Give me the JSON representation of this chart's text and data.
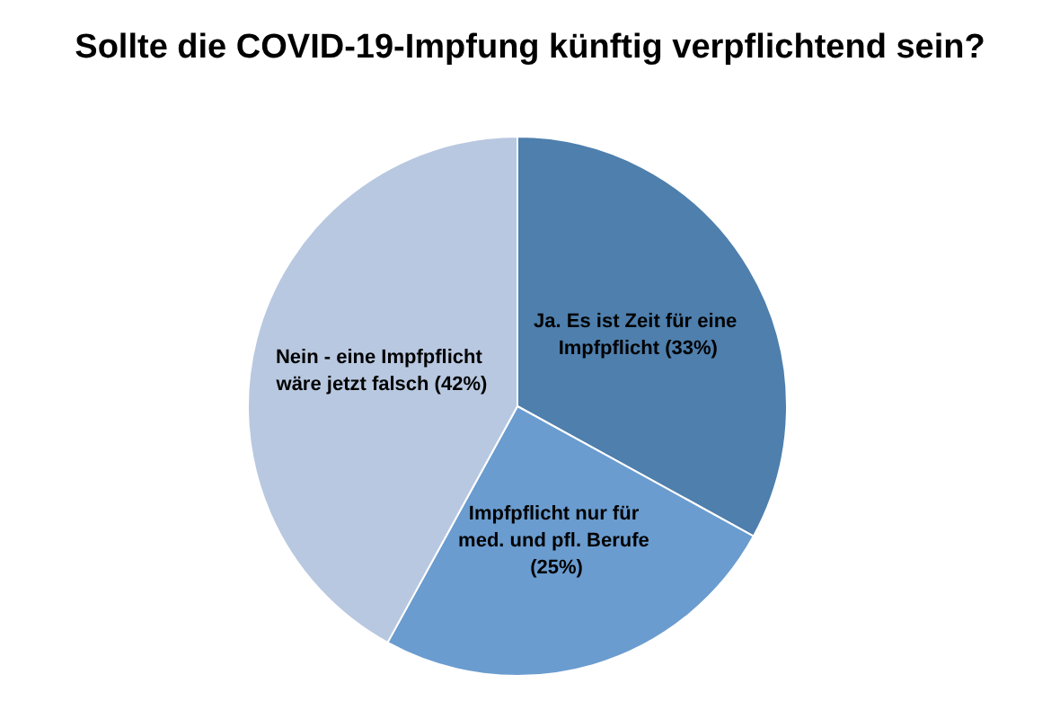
{
  "chart_data": {
    "type": "pie",
    "title": "Sollte die COVID-19-Impfung künftig verpflichtend sein?",
    "categories": [
      "Ja. Es ist Zeit für eine Impfpflicht (33%)",
      "Impfpflicht nur für med. und pfl. Berufe (25%)",
      "Nein - eine Impfpflicht wäre jetzt falsch (42%)"
    ],
    "values": [
      33,
      25,
      42
    ],
    "colors": [
      "#4e7fad",
      "#6a9ccf",
      "#b8c8e0"
    ],
    "legend": false
  }
}
